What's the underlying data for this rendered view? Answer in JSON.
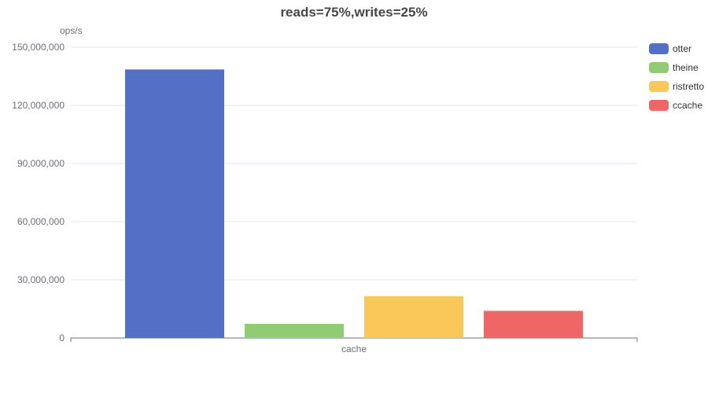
{
  "chart_data": {
    "type": "bar",
    "title": "reads=75%,writes=25%",
    "ylabel": "ops/s",
    "xlabel": "",
    "categories": [
      "cache"
    ],
    "series": [
      {
        "name": "otter",
        "values": [
          138500000
        ],
        "color": "#5470c6"
      },
      {
        "name": "theine",
        "values": [
          7300000
        ],
        "color": "#91cc75"
      },
      {
        "name": "ristretto",
        "values": [
          21600000
        ],
        "color": "#fac858"
      },
      {
        "name": "ccache",
        "values": [
          14000000
        ],
        "color": "#ee6666"
      }
    ],
    "ylim": [
      0,
      150000000
    ],
    "yticks": [
      0,
      30000000,
      60000000,
      90000000,
      120000000,
      150000000
    ],
    "ytick_labels": [
      "0",
      "30,000,000",
      "60,000,000",
      "90,000,000",
      "120,000,000",
      "150,000,000"
    ],
    "grid": true,
    "legend_position": "right"
  }
}
